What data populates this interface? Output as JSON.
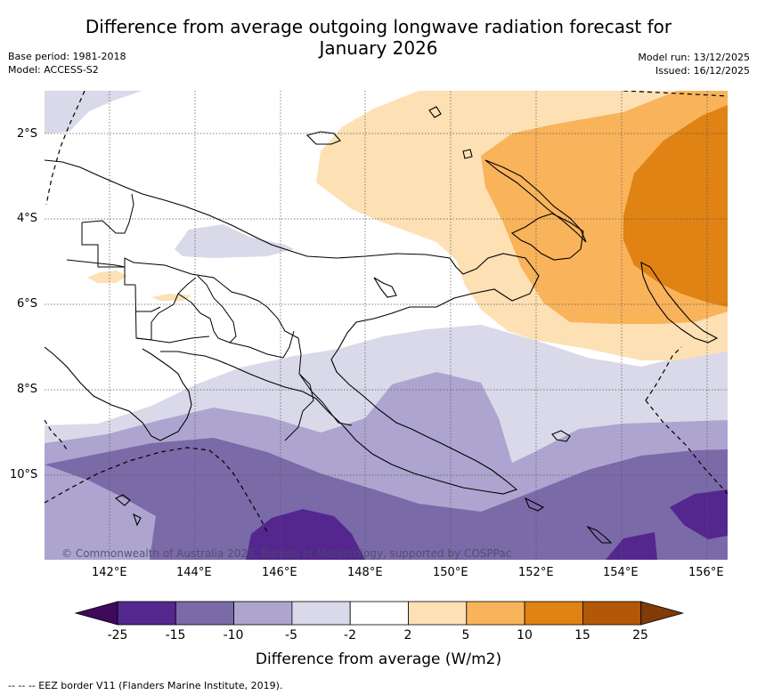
{
  "title": "Difference from average outgoing longwave radiation forecast for January 2026",
  "title_line1": "Difference from average outgoing longwave radiation forecast for",
  "title_line2": "January 2026",
  "base_period": "Base period: 1981-2018",
  "model": "Model: ACCESS-S2",
  "model_run": "Model run: 13/12/2025",
  "issued": "Issued: 16/12/2025",
  "copyright": "© Commonwealth of Australia 2025, Bureau of Meteorology, supported by COSPPac",
  "footnote": "-- -- -- EEZ border V11 (Flanders Marine Institute, 2019).",
  "lat_labels": [
    "2°S",
    "4°S",
    "6°S",
    "8°S",
    "10°S"
  ],
  "lon_labels": [
    "142°E",
    "144°E",
    "146°E",
    "148°E",
    "150°E",
    "152°E",
    "154°E",
    "156°E"
  ],
  "colorbar": {
    "title": "Difference from average (W/m2)",
    "ticks": [
      "-25",
      "-15",
      "-10",
      "-5",
      "-2",
      "2",
      "5",
      "10",
      "15",
      "25"
    ],
    "colors": [
      "#3d0a5c",
      "#54278f",
      "#7b6aa8",
      "#ada5cf",
      "#d9d9ea",
      "#ffffff",
      "#fde0b4",
      "#f9b35b",
      "#e08214",
      "#b35806",
      "#7f3b08"
    ]
  },
  "legend_colors": {
    "lightest_purple": "#d9d9ea",
    "light_purple": "#ada5cf",
    "mid_purple": "#7b6aa8",
    "dark_purple": "#54278f",
    "light_orange": "#fde0b4",
    "mid_orange": "#f9b35b",
    "dark_orange": "#e08214"
  }
}
